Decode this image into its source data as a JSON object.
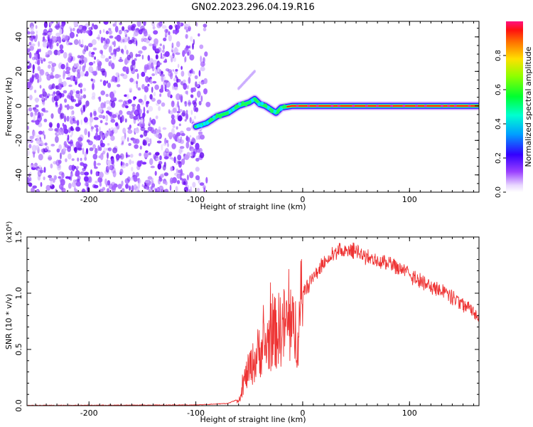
{
  "title": "GN02.2023.296.04.19.R16",
  "colors": {
    "snr_line": "#ee3333",
    "axis": "#000000",
    "background": "#ffffff"
  },
  "chart_data": [
    {
      "type": "heatmap",
      "xlabel": "Height of straight line (km)",
      "ylabel": "Frequency (Hz)",
      "xlim": [
        -258,
        165
      ],
      "ylim": [
        -50,
        49
      ],
      "x_ticks": [
        "-200",
        "-100",
        "0",
        "100"
      ],
      "x_tick_values": [
        -200,
        -100,
        0,
        100
      ],
      "y_ticks": [
        "-40",
        "-20",
        "0",
        "20",
        "40"
      ],
      "y_tick_values": [
        -40,
        -20,
        0,
        20,
        40
      ],
      "grid": false,
      "colorbar": {
        "label": "Normalized spectral amplitude",
        "ticks": [
          "0.0",
          "0.2",
          "0.4",
          "0.6",
          "0.8"
        ],
        "tick_values": [
          0.0,
          0.2,
          0.4,
          0.6,
          0.8
        ],
        "range": [
          0,
          1
        ],
        "colormap": "rainbow (white-violet-blue-cyan-green-yellow-red-magenta)"
      },
      "features": {
        "noise_region_x": [
          -258,
          -92
        ],
        "signal_track": {
          "x": [
            -100,
            -90,
            -80,
            -70,
            -60,
            -50,
            -45,
            -40,
            -35,
            -30,
            -25,
            -20,
            -10,
            0,
            50,
            100,
            165
          ],
          "freq": [
            -12,
            -10,
            -6,
            -4,
            0,
            2,
            4,
            1,
            0,
            -2,
            -4,
            -1,
            0,
            0,
            0,
            0,
            0
          ]
        },
        "drift_streak": {
          "x": [
            -60,
            -45
          ],
          "freq": [
            10,
            20
          ]
        }
      }
    },
    {
      "type": "line",
      "xlabel": "Height of straight line (km)",
      "ylabel": "SNR (10 * v/v)",
      "y_multiplier": "(x10⁴)",
      "xlim": [
        -258,
        165
      ],
      "ylim": [
        0,
        1.5
      ],
      "x_ticks": [
        "-200",
        "-100",
        "0",
        "100"
      ],
      "x_tick_values": [
        -200,
        -100,
        0,
        100
      ],
      "y_ticks": [
        "0.0",
        "0.5",
        "1.0",
        "1.5"
      ],
      "y_tick_values": [
        0.0,
        0.5,
        1.0,
        1.5
      ],
      "grid": false,
      "series": [
        {
          "color": "#ee3333",
          "envelope": {
            "x": [
              -258,
              -100,
              -70,
              -62,
              -58,
              -55,
              -50,
              -45,
              -40,
              -35,
              -30,
              -25,
              -20,
              -15,
              -10,
              -5,
              0,
              10,
              20,
              30,
              40,
              50,
              60,
              70,
              80,
              90,
              100,
              110,
              120,
              130,
              140,
              150,
              160,
              165
            ],
            "y": [
              0.002,
              0.006,
              0.02,
              0.05,
              0.12,
              0.3,
              0.45,
              0.55,
              0.7,
              0.72,
              0.85,
              0.9,
              0.95,
              1.0,
              0.9,
              0.95,
              1.05,
              1.2,
              1.33,
              1.42,
              1.45,
              1.43,
              1.38,
              1.36,
              1.32,
              1.28,
              1.22,
              1.17,
              1.12,
              1.07,
              1.02,
              0.96,
              0.9,
              0.87
            ]
          }
        }
      ]
    }
  ]
}
